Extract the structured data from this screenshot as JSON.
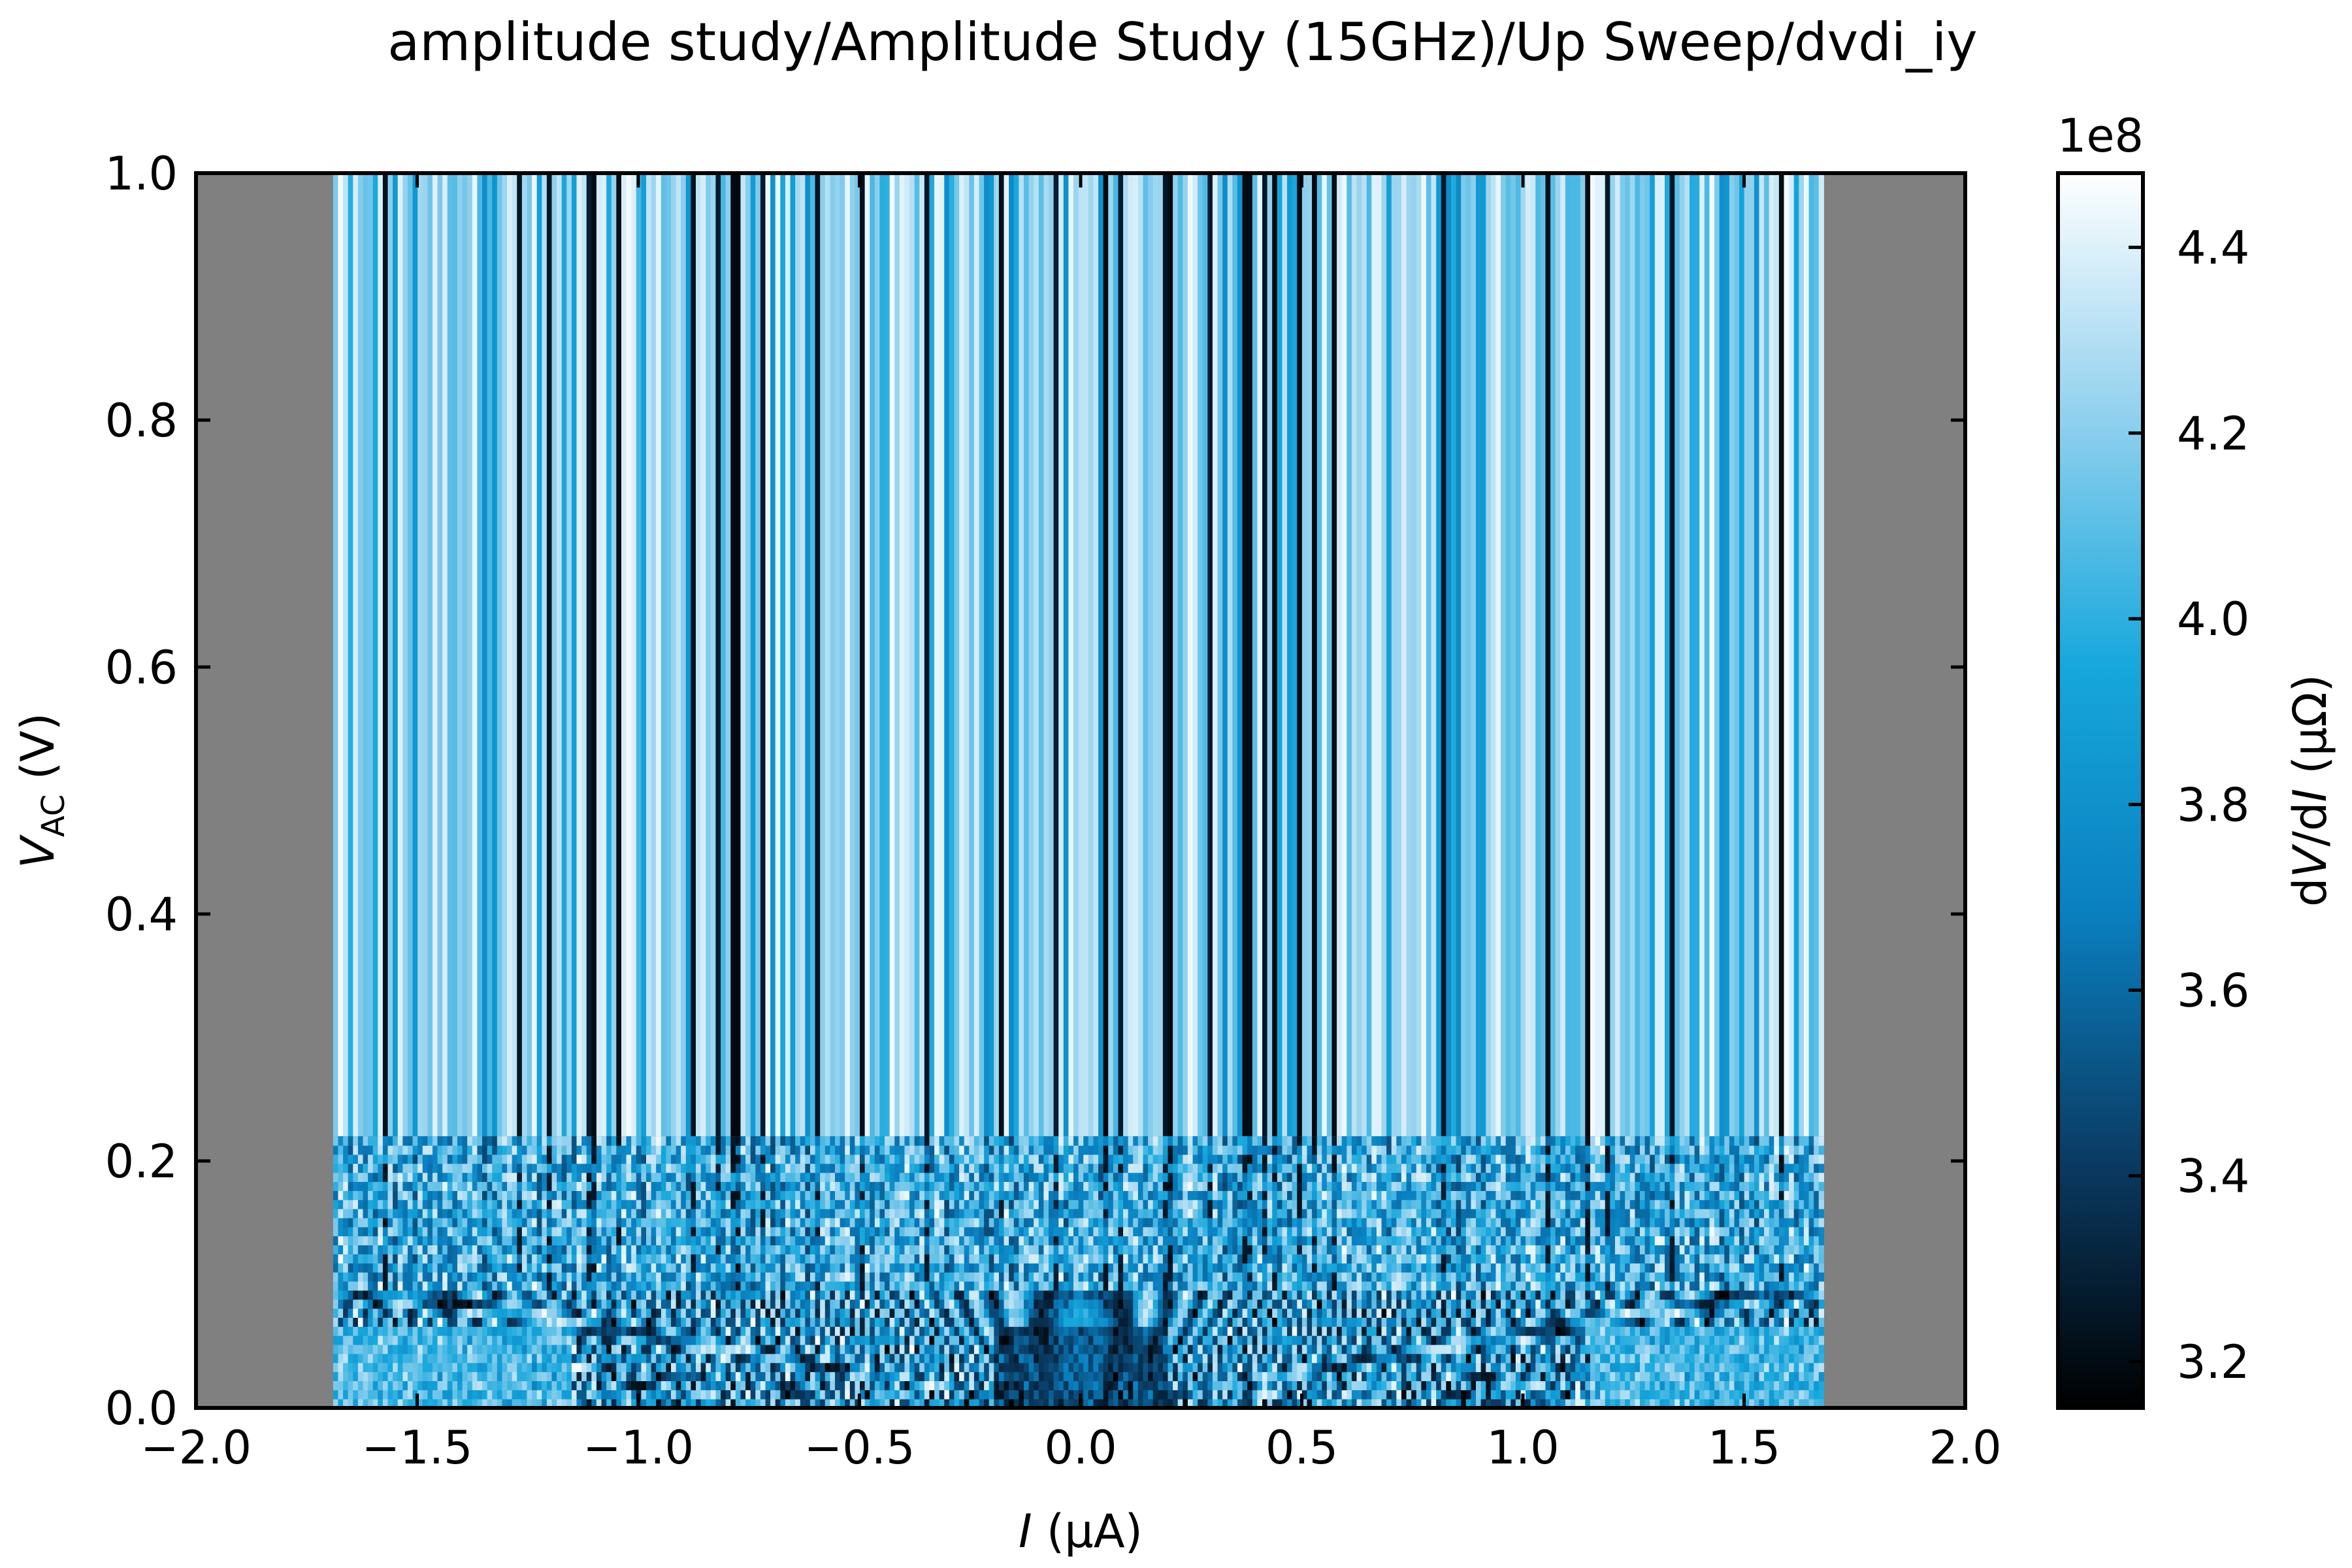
{
  "chart_data": {
    "type": "heatmap",
    "title": "amplitude study/Amplitude Study (15GHz)/Up Sweep/dvdi_iy",
    "xlabel": {
      "symbol": "I",
      "unit": " (μA)"
    },
    "ylabel": {
      "symbol": "V",
      "subscript": "AC",
      "unit": " (V)"
    },
    "xlim": [
      -2.0,
      2.0
    ],
    "ylim": [
      0.0,
      1.0
    ],
    "x_ticks": [
      -2.0,
      -1.5,
      -1.0,
      -0.5,
      0.0,
      0.5,
      1.0,
      1.5,
      2.0
    ],
    "x_tick_labels": [
      "−2.0",
      "−1.5",
      "−1.0",
      "−0.5",
      "0.0",
      "0.5",
      "1.0",
      "1.5",
      "2.0"
    ],
    "y_ticks": [
      0.0,
      0.2,
      0.4,
      0.6,
      0.8,
      1.0
    ],
    "y_tick_labels": [
      "0.0",
      "0.2",
      "0.4",
      "0.6",
      "0.8",
      "1.0"
    ],
    "data_extent": {
      "x": [
        -1.69,
        1.68
      ],
      "y": [
        0.0,
        1.0
      ]
    },
    "transition_y": 0.22,
    "background_color": "#808080",
    "colormap": {
      "name": "blue-white",
      "stops": [
        "#000000",
        "#0a3b63",
        "#0a7fbf",
        "#16a7dc",
        "#8fd0ee",
        "#ffffff"
      ]
    },
    "colorbar": {
      "label": {
        "prefix": "d",
        "v": "V",
        "mid": "/d",
        "i": "I",
        "unit": " (μΩ)"
      },
      "range": [
        3.15,
        4.48
      ],
      "ticks": [
        3.2,
        3.4,
        3.6,
        3.8,
        4.0,
        4.2,
        4.4
      ],
      "tick_labels": [
        "3.2",
        "3.4",
        "3.6",
        "3.8",
        "4.0",
        "4.2",
        "4.4"
      ],
      "offset_text": "1e8"
    },
    "grid": false,
    "legend": "none"
  }
}
